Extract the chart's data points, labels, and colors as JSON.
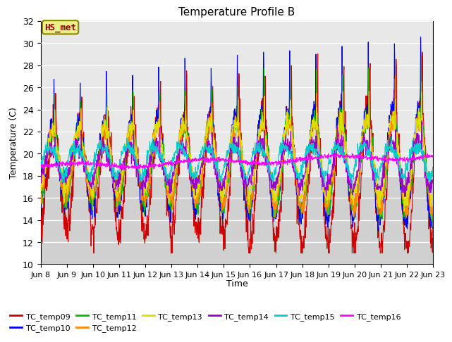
{
  "title": "Temperature Profile B",
  "xlabel": "Time",
  "ylabel": "Temperature (C)",
  "ylim": [
    10,
    32
  ],
  "n_days": 15,
  "x_tick_labels": [
    "Jun 8",
    "Jun 9",
    "Jun 10",
    "Jun 11",
    "Jun 12",
    "Jun 13",
    "Jun 14",
    "Jun 15",
    "Jun 16",
    "Jun 17",
    "Jun 18",
    "Jun 19",
    "Jun 20",
    "Jun 21",
    "Jun 22",
    "Jun 23"
  ],
  "series_colors": {
    "TC_temp09": "#cc0000",
    "TC_temp10": "#0000ee",
    "TC_temp11": "#00bb00",
    "TC_temp12": "#ff8800",
    "TC_temp13": "#dddd00",
    "TC_temp14": "#9900cc",
    "TC_temp15": "#00cccc",
    "TC_temp16": "#ff00ff"
  },
  "annotation_text": "HS_met",
  "annotation_color": "#880000",
  "annotation_bg": "#eeee88",
  "annotation_edge": "#888800",
  "bg_upper": "#e8e8e8",
  "bg_lower": "#d0d0d0",
  "bg_split_temp": 18,
  "title_fontsize": 11,
  "axis_fontsize": 9,
  "legend_fontsize": 8
}
